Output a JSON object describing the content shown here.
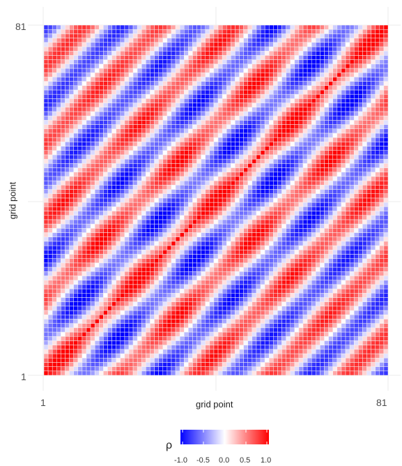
{
  "chart_data": {
    "type": "heatmap",
    "title": "",
    "xlabel": "grid point",
    "ylabel": "grid point",
    "x_ticks": [
      "1",
      "81"
    ],
    "y_ticks": [
      "1",
      "81"
    ],
    "n_rows": 81,
    "n_cols": 81,
    "value_range": [
      -1.0,
      1.0
    ],
    "diagonal_value": 1.0,
    "colorscale": {
      "low": "#0000ff",
      "mid": "#ffffff",
      "high": "#ff0000"
    },
    "legend": {
      "title": "ρ",
      "position": "bottom",
      "ticks": [
        "-1.0",
        "-0.5",
        "0.0",
        "0.5",
        "1.0"
      ]
    },
    "grid": true
  }
}
